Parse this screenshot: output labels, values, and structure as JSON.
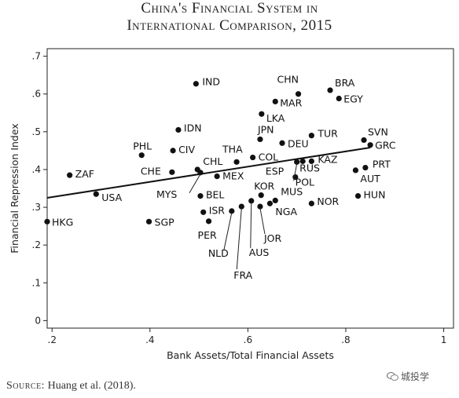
{
  "title_line1": "China's Financial System in",
  "title_line2": "International Comparison, 2015",
  "source_label": "Source:",
  "source_text": " Huang et al. (2018).",
  "watermark": "城投学",
  "chart_data": {
    "type": "scatter",
    "xlabel": "Bank Assets/Total Financial Assets",
    "ylabel": "Financial Repression Index",
    "xlim": [
      0.19,
      1.02
    ],
    "ylim": [
      -0.02,
      0.72
    ],
    "xticks": [
      0.2,
      0.4,
      0.6,
      0.8,
      1
    ],
    "xtick_labels": [
      ".2",
      ".4",
      ".6",
      ".8",
      "1"
    ],
    "yticks": [
      0,
      0.1,
      0.2,
      0.3,
      0.4,
      0.5,
      0.6,
      0.7
    ],
    "ytick_labels": [
      "0",
      ".1",
      ".2",
      ".3",
      ".4",
      ".5",
      ".6",
      ".7"
    ],
    "grid": false,
    "legend": "none",
    "fit_line": {
      "x": [
        0.19,
        0.85
      ],
      "y": [
        0.325,
        0.458
      ]
    },
    "points": [
      {
        "label": "HKG",
        "x": 0.19,
        "y": 0.262
      },
      {
        "label": "ZAF",
        "x": 0.236,
        "y": 0.385
      },
      {
        "label": "USA",
        "x": 0.29,
        "y": 0.335
      },
      {
        "label": "PHL",
        "x": 0.383,
        "y": 0.438
      },
      {
        "label": "SGP",
        "x": 0.398,
        "y": 0.262
      },
      {
        "label": "CHE",
        "x": 0.445,
        "y": 0.393
      },
      {
        "label": "CIV",
        "x": 0.447,
        "y": 0.45
      },
      {
        "label": "IDN",
        "x": 0.458,
        "y": 0.505
      },
      {
        "label": "IND",
        "x": 0.494,
        "y": 0.627
      },
      {
        "label": "CHL",
        "x": 0.497,
        "y": 0.4
      },
      {
        "label": "MYS",
        "x": 0.503,
        "y": 0.392
      },
      {
        "label": "BEL",
        "x": 0.503,
        "y": 0.33
      },
      {
        "label": "ISR",
        "x": 0.509,
        "y": 0.287
      },
      {
        "label": "PER",
        "x": 0.52,
        "y": 0.263
      },
      {
        "label": "MEX",
        "x": 0.537,
        "y": 0.382
      },
      {
        "label": "THA",
        "x": 0.577,
        "y": 0.42
      },
      {
        "label": "NLD",
        "x": 0.567,
        "y": 0.29
      },
      {
        "label": "FRA",
        "x": 0.587,
        "y": 0.302
      },
      {
        "label": "AUS",
        "x": 0.607,
        "y": 0.317
      },
      {
        "label": "JOR",
        "x": 0.625,
        "y": 0.302
      },
      {
        "label": "COL",
        "x": 0.61,
        "y": 0.432
      },
      {
        "label": "JPN",
        "x": 0.625,
        "y": 0.48
      },
      {
        "label": "LKA",
        "x": 0.628,
        "y": 0.547
      },
      {
        "label": "KOR",
        "x": 0.627,
        "y": 0.332
      },
      {
        "label": "NGA",
        "x": 0.645,
        "y": 0.31
      },
      {
        "label": "MUS",
        "x": 0.656,
        "y": 0.318
      },
      {
        "label": "MAR",
        "x": 0.656,
        "y": 0.58
      },
      {
        "label": "DEU",
        "x": 0.67,
        "y": 0.47
      },
      {
        "label": "CHN",
        "x": 0.703,
        "y": 0.6
      },
      {
        "label": "ESP",
        "x": 0.697,
        "y": 0.38
      },
      {
        "label": "POL",
        "x": 0.7,
        "y": 0.42
      },
      {
        "label": "RUS",
        "x": 0.712,
        "y": 0.422
      },
      {
        "label": "KAZ",
        "x": 0.73,
        "y": 0.422
      },
      {
        "label": "TUR",
        "x": 0.73,
        "y": 0.49
      },
      {
        "label": "NOR",
        "x": 0.73,
        "y": 0.31
      },
      {
        "label": "BRA",
        "x": 0.768,
        "y": 0.61
      },
      {
        "label": "EGY",
        "x": 0.786,
        "y": 0.588
      },
      {
        "label": "AUT",
        "x": 0.82,
        "y": 0.398
      },
      {
        "label": "HUN",
        "x": 0.825,
        "y": 0.33
      },
      {
        "label": "PRT",
        "x": 0.84,
        "y": 0.405
      },
      {
        "label": "SVN",
        "x": 0.837,
        "y": 0.478
      },
      {
        "label": "GRC",
        "x": 0.85,
        "y": 0.465
      }
    ]
  }
}
